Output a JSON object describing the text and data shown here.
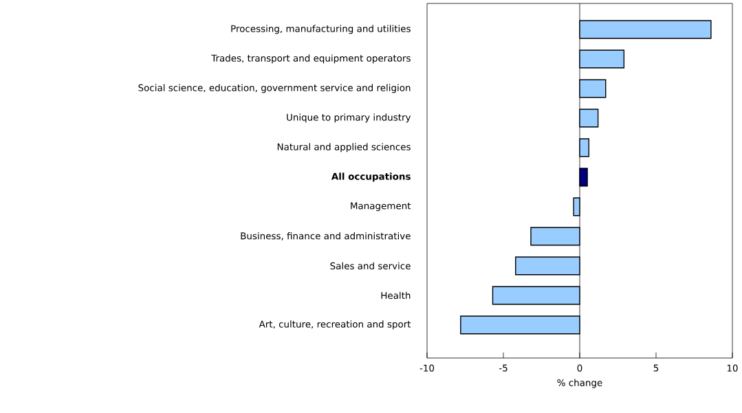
{
  "chart_data": {
    "type": "bar",
    "orientation": "horizontal",
    "xlabel": "% change",
    "categories": [
      "Processing, manufacturing and utilities",
      "Trades, transport and equipment operators",
      "Social science, education, government service and religion",
      "Unique to primary industry",
      "Natural and applied sciences",
      "**All occupations**",
      "Management",
      "Business, finance and administrative",
      "Sales and service",
      "Health",
      "Art, culture, recreation and sport"
    ],
    "values": [
      8.6,
      2.9,
      1.7,
      1.2,
      0.6,
      0.5,
      -0.4,
      -3.2,
      -4.2,
      -5.7,
      -7.8
    ],
    "colors": [
      "#99ccff",
      "#99ccff",
      "#99ccff",
      "#99ccff",
      "#99ccff",
      "#000080",
      "#99ccff",
      "#99ccff",
      "#99ccff",
      "#99ccff",
      "#99ccff"
    ],
    "xlim": [
      -10,
      10
    ],
    "xticks": [
      -10,
      -5,
      0,
      5,
      10
    ]
  }
}
